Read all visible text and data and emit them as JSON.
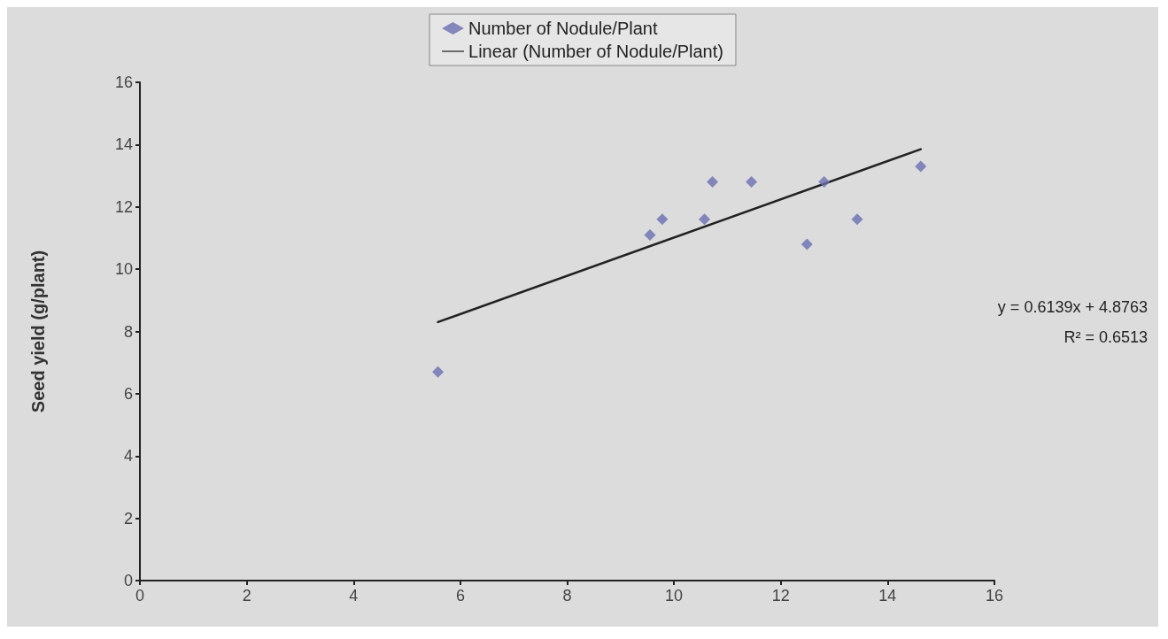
{
  "chart_data": {
    "type": "scatter",
    "ylabel": "Seed yield (g/plant)",
    "xlim": [
      0,
      16
    ],
    "xticks": [
      0,
      2,
      4,
      6,
      8,
      10,
      12,
      14,
      16
    ],
    "ylim": [
      0,
      16
    ],
    "yticks": [
      0,
      2,
      4,
      6,
      8,
      10,
      12,
      14,
      16
    ],
    "grid": false,
    "legend": "top",
    "marker": "diamond",
    "series": [
      {
        "name": "Number of Nodule/Plant",
        "color": "#6a6fb0",
        "x": [
          5.58,
          9.55,
          9.78,
          10.57,
          10.72,
          11.45,
          12.49,
          12.81,
          13.43,
          14.62
        ],
        "values": [
          6.7,
          11.1,
          11.6,
          11.6,
          12.8,
          12.8,
          10.8,
          12.8,
          11.6,
          13.3
        ]
      },
      {
        "name": "Linear (Number of Nodule/Plant)",
        "type": "line",
        "color": "#222222",
        "x": [
          5.58,
          14.62
        ],
        "values": [
          8.3,
          13.85
        ],
        "line_style": "solid",
        "marker": "none"
      }
    ],
    "annotations": [
      "y = 0.6139x + 4.8763",
      "R² = 0.6513"
    ]
  }
}
